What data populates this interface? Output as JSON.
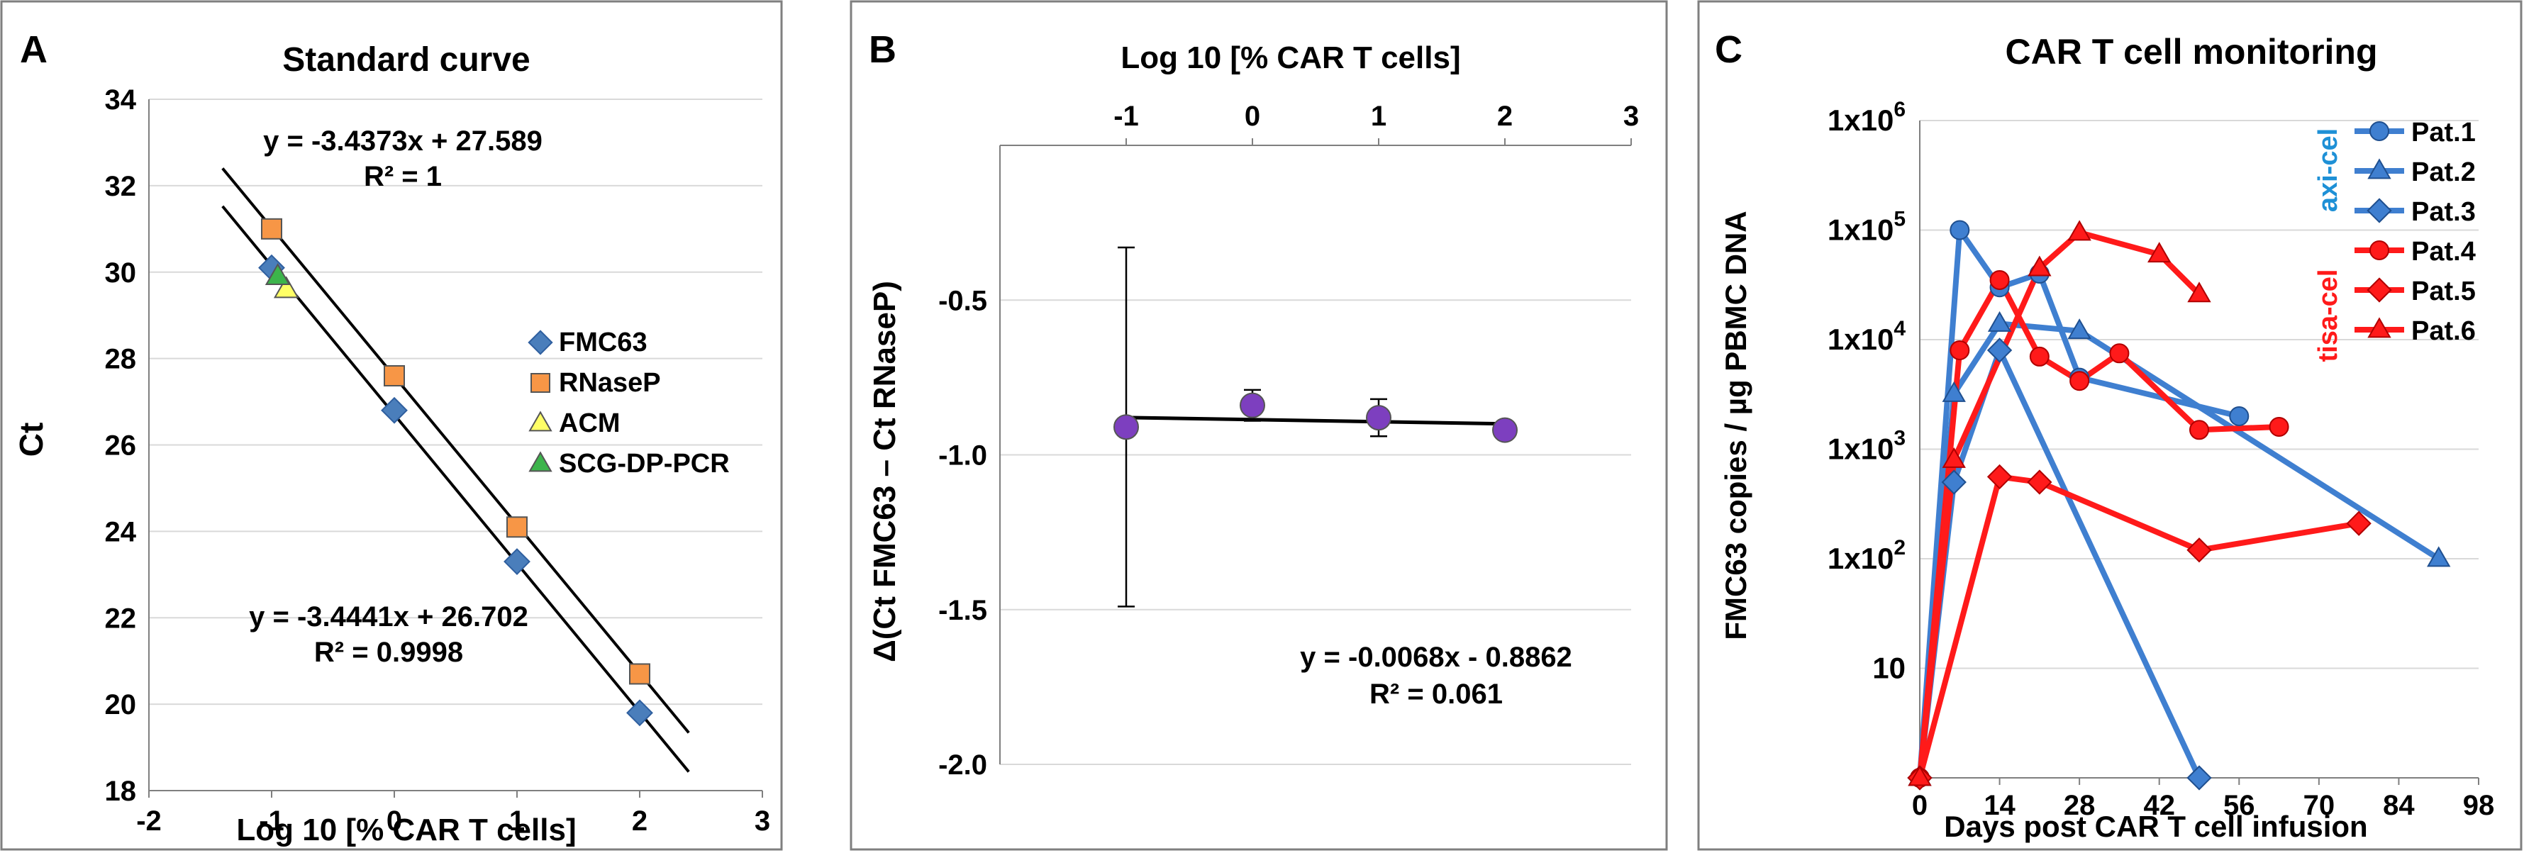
{
  "chart_data": [
    {
      "panel_letter": "A",
      "type": "scatter",
      "title": "Standard curve",
      "xlabel": "Log 10 [% CAR T cells]",
      "ylabel": "Ct",
      "xlim": [
        -2,
        3
      ],
      "ylim": [
        18,
        34
      ],
      "x_ticks": [
        "-2",
        "-1",
        "0",
        "1",
        "2",
        "3"
      ],
      "y_ticks": [
        "18",
        "20",
        "22",
        "24",
        "26",
        "28",
        "30",
        "32",
        "34"
      ],
      "grid": "horizontal",
      "legend_position": "right",
      "series": [
        {
          "name": "FMC63",
          "marker": "diamond",
          "color": "#4a7ebb",
          "points": [
            [
              -1,
              30.1
            ],
            [
              0,
              26.8
            ],
            [
              1,
              23.3
            ],
            [
              2,
              19.8
            ]
          ]
        },
        {
          "name": "RNaseP",
          "marker": "square",
          "color": "#f79646",
          "points": [
            [
              -1,
              31.0
            ],
            [
              0,
              27.6
            ],
            [
              1,
              24.1
            ],
            [
              2,
              20.7
            ]
          ]
        },
        {
          "name": "ACM",
          "marker": "triangle",
          "color": "#ffff66",
          "points": [
            [
              -0.88,
              29.6
            ]
          ]
        },
        {
          "name": "SCG-DP-PCR",
          "marker": "triangle",
          "color": "#3cb44b",
          "points": [
            [
              -0.95,
              29.9
            ]
          ]
        }
      ],
      "trendlines": [
        {
          "slope": -3.4373,
          "intercept": 27.589,
          "x_range": [
            -1.4,
            2.4
          ]
        },
        {
          "slope": -3.4441,
          "intercept": 26.702,
          "x_range": [
            -1.4,
            2.4
          ]
        }
      ],
      "annotations": [
        {
          "eq": "y = -3.4373x + 27.589",
          "r2": "R² = 1"
        },
        {
          "eq": "y = -3.4441x + 26.702",
          "r2": "R² = 0.9998"
        }
      ]
    },
    {
      "panel_letter": "B",
      "type": "scatter",
      "title": "Log 10 [% CAR T cells]",
      "xlabel": "Log 10 [% CAR T cells]",
      "ylabel": "Δ(Ct FMC63 – Ct RNaseP)",
      "xlim": [
        -2,
        3
      ],
      "ylim": [
        -2.0,
        0
      ],
      "x_axis_position": "top",
      "x_ticks": [
        "-1",
        "0",
        "1",
        "2",
        "3"
      ],
      "y_ticks": [
        "-0.5",
        "-1.0",
        "-1.5",
        "-2.0"
      ],
      "grid": "horizontal",
      "points": [
        {
          "x": -1,
          "y": -0.91,
          "err": 0.58
        },
        {
          "x": 0,
          "y": -0.84,
          "err": 0.05
        },
        {
          "x": 1,
          "y": -0.88,
          "err": 0.06
        },
        {
          "x": 2,
          "y": -0.92,
          "err": 0.0
        }
      ],
      "marker_color": "#7d3fbf",
      "trendline": {
        "slope": -0.0068,
        "intercept": -0.8862,
        "x_range": [
          -1,
          2
        ]
      },
      "annotation": {
        "eq": "y = -0.0068x - 0.8862",
        "r2": "R² = 0.061"
      }
    },
    {
      "panel_letter": "C",
      "type": "line",
      "title": "CAR T cell monitoring",
      "xlabel": "Days post CAR T cell infusion",
      "ylabel": "FMC63 copies / µg PBMC DNA",
      "xlim": [
        0,
        98
      ],
      "y_scale": "log",
      "ylim": [
        1,
        1000000
      ],
      "x_ticks": [
        "0",
        "14",
        "28",
        "42",
        "56",
        "70",
        "84",
        "98"
      ],
      "y_ticks": [
        {
          "base": "10",
          "exp": ""
        },
        {
          "base": "1x10",
          "exp": "2"
        },
        {
          "base": "1x10",
          "exp": "3"
        },
        {
          "base": "1x10",
          "exp": "4"
        },
        {
          "base": "1x10",
          "exp": "5"
        },
        {
          "base": "1x10",
          "exp": "6"
        }
      ],
      "grid": "horizontal",
      "legend_position": "top-right",
      "group_labels": [
        {
          "text": "axi-cel",
          "color": "#1e90d6"
        },
        {
          "text": "tisa-cel",
          "color": "#ff1a1a"
        }
      ],
      "series": [
        {
          "name": "Pat.1",
          "color": "#3f7fd0",
          "marker": "circle",
          "points": [
            [
              0,
              1
            ],
            [
              7,
              100000
            ],
            [
              14,
              30000
            ],
            [
              21,
              40000
            ],
            [
              28,
              4500
            ],
            [
              56,
              2000
            ]
          ]
        },
        {
          "name": "Pat.2",
          "color": "#3f7fd0",
          "marker": "triangle",
          "points": [
            [
              0,
              1
            ],
            [
              6,
              3200
            ],
            [
              14,
              14000
            ],
            [
              28,
              12000
            ],
            [
              91,
              100
            ]
          ]
        },
        {
          "name": "Pat.3",
          "color": "#3f7fd0",
          "marker": "diamond",
          "points": [
            [
              0,
              1
            ],
            [
              6,
              500
            ],
            [
              14,
              8000
            ],
            [
              49,
              1
            ]
          ]
        },
        {
          "name": "Pat.4",
          "color": "#ff1a1a",
          "marker": "circle",
          "points": [
            [
              0,
              1
            ],
            [
              7,
              8000
            ],
            [
              14,
              35000
            ],
            [
              21,
              7000
            ],
            [
              28,
              4200
            ],
            [
              35,
              7500
            ],
            [
              49,
              1500
            ],
            [
              63,
              1600
            ]
          ]
        },
        {
          "name": "Pat.5",
          "color": "#ff1a1a",
          "marker": "diamond",
          "points": [
            [
              0,
              1
            ],
            [
              14,
              560
            ],
            [
              21,
              500
            ],
            [
              49,
              120
            ],
            [
              77,
              210
            ]
          ]
        },
        {
          "name": "Pat.6",
          "color": "#ff1a1a",
          "marker": "triangle",
          "points": [
            [
              0,
              1
            ],
            [
              6,
              800
            ],
            [
              21,
              45000
            ],
            [
              28,
              95000
            ],
            [
              42,
              60000
            ],
            [
              49,
              26000
            ]
          ]
        }
      ]
    }
  ]
}
